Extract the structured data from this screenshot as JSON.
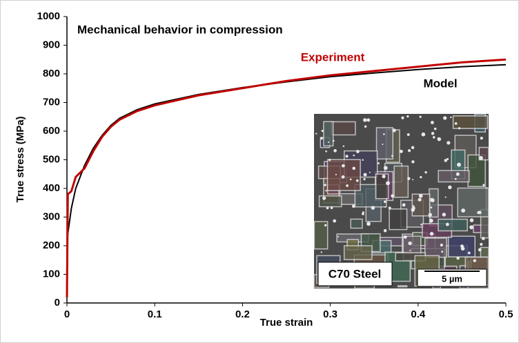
{
  "chart_data": {
    "type": "line",
    "title": "Mechanical behavior in compression",
    "xlabel": "True strain",
    "ylabel": "True stress (MPa)",
    "xlim": [
      0,
      0.5
    ],
    "xticks": [
      0,
      0.1,
      0.2,
      0.3,
      0.4,
      0.5
    ],
    "ylim": [
      0,
      1000
    ],
    "yticks": [
      0,
      100,
      200,
      300,
      400,
      500,
      600,
      700,
      800,
      900,
      1000
    ],
    "series": [
      {
        "name": "Experiment",
        "color": "#c00000",
        "x": [
          0,
          0.001,
          0.005,
          0.01,
          0.02,
          0.03,
          0.04,
          0.05,
          0.06,
          0.08,
          0.1,
          0.15,
          0.2,
          0.25,
          0.3,
          0.35,
          0.4,
          0.45,
          0.5
        ],
        "values": [
          20,
          380,
          390,
          440,
          470,
          530,
          580,
          615,
          640,
          670,
          690,
          725,
          750,
          775,
          795,
          810,
          825,
          840,
          850
        ]
      },
      {
        "name": "Model",
        "color": "#000000",
        "x": [
          0,
          0.005,
          0.01,
          0.02,
          0.03,
          0.04,
          0.05,
          0.06,
          0.08,
          0.1,
          0.15,
          0.2,
          0.25,
          0.3,
          0.35,
          0.4,
          0.45,
          0.5
        ],
        "values": [
          220,
          330,
          400,
          480,
          540,
          585,
          620,
          645,
          675,
          695,
          728,
          752,
          772,
          790,
          803,
          815,
          825,
          832
        ]
      }
    ],
    "inset": {
      "label": "C70 Steel",
      "scale_bar": "5 µm"
    }
  }
}
